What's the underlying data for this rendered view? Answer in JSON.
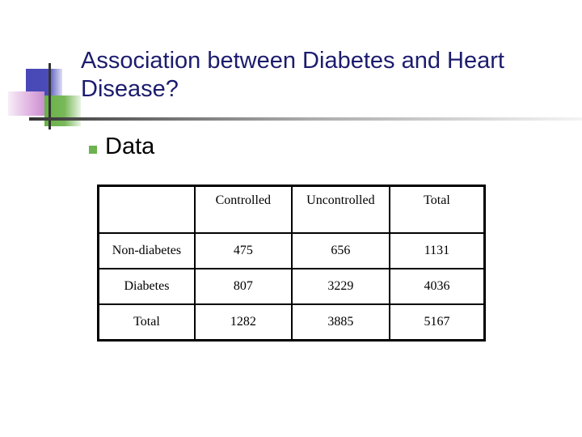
{
  "slide": {
    "title": "Association between Diabetes and Heart Disease?",
    "bullets": [
      {
        "text": "Data",
        "icon": "square-bullet-icon"
      }
    ],
    "colors": {
      "title": "#1c1c6e",
      "bullet": "#6cb24e",
      "deco_blue": "#4848b8",
      "deco_green": "#68b048",
      "deco_pink": "#dca8dc"
    }
  },
  "table": {
    "headers": [
      "",
      "Controlled",
      "Uncontrolled",
      "Total"
    ],
    "rows": [
      [
        "Non-diabetes",
        "475",
        "656",
        "1131"
      ],
      [
        "Diabetes",
        "807",
        "3229",
        "4036"
      ],
      [
        "Total",
        "1282",
        "3885",
        "5167"
      ]
    ]
  }
}
